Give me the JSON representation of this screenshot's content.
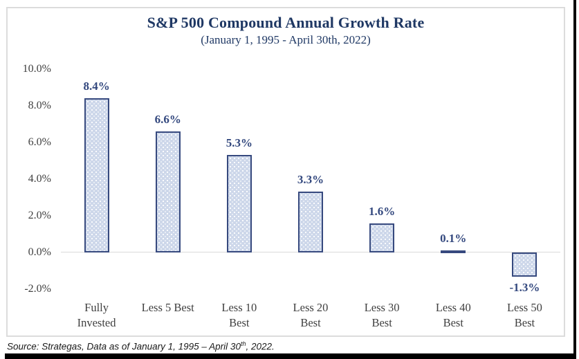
{
  "chart_data": {
    "type": "bar",
    "title": "S&P 500 Compound Annual Growth Rate",
    "subtitle": "(January 1, 1995 - April 30th, 2022)",
    "categories": [
      "Fully\nInvested",
      "Less 5 Best",
      "Less 10\nBest",
      "Less 20\nBest",
      "Less 30\nBest",
      "Less 40\nBest",
      "Less 50\nBest"
    ],
    "values": [
      8.4,
      6.6,
      5.3,
      3.3,
      1.6,
      0.1,
      -1.3
    ],
    "value_labels": [
      "8.4%",
      "6.6%",
      "5.3%",
      "3.3%",
      "1.6%",
      "0.1%",
      "-1.3%"
    ],
    "xlabel": "",
    "ylabel": "",
    "ylim": [
      -2.6,
      10.8
    ],
    "yticks": [
      {
        "value": 10,
        "label": "10.0%"
      },
      {
        "value": 8,
        "label": "8.0%"
      },
      {
        "value": 6,
        "label": "6.0%"
      },
      {
        "value": 4,
        "label": "4.0%"
      },
      {
        "value": 2,
        "label": "2.0%"
      },
      {
        "value": 0,
        "label": "0.0%"
      },
      {
        "value": -2,
        "label": "-2.0%"
      }
    ],
    "grid": "zero-line-only",
    "legend": "none",
    "colors": {
      "title_text": "#1f3864",
      "value_label_text": "#33487e",
      "bar_fill": "#cdd7ea",
      "bar_border": "#36497e",
      "axis_text": "#404040",
      "zero_line": "#d9d9d9",
      "frame_border": "#dcdcdc",
      "page_background": "#ffffff",
      "edge_bars": "#000000"
    }
  },
  "source_note": {
    "prefix": "Source: Strategas, Data as of January 1, 1995 – April 30",
    "superscript": "th",
    "suffix": ", 2022."
  }
}
